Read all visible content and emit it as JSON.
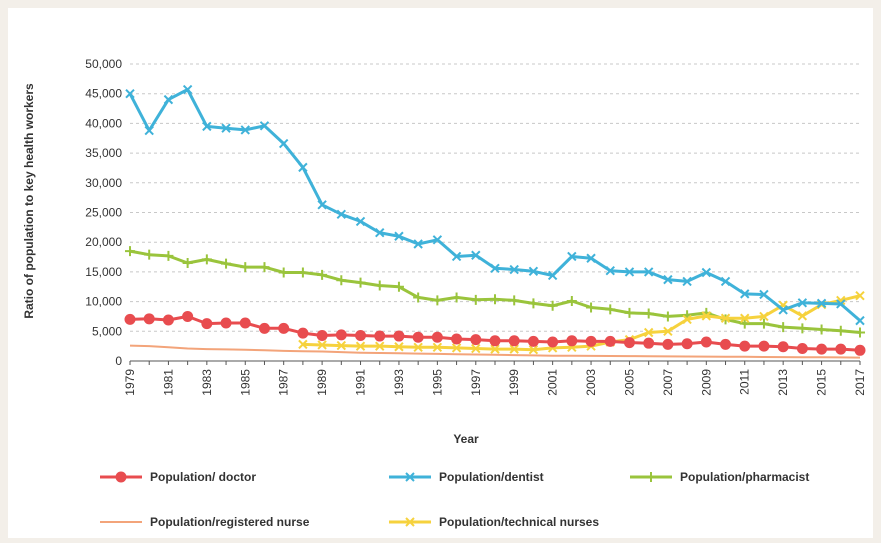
{
  "chart_data": {
    "type": "line",
    "xlabel": "Year",
    "ylabel": "Ratio of population to key health workers",
    "ylim": [
      0,
      50000
    ],
    "y_ticks": [
      "0",
      "5,000",
      "10,000",
      "15,000",
      "20,000",
      "25,000",
      "30,000",
      "35,000",
      "40,000",
      "45,000",
      "50,000"
    ],
    "x_ticks": [
      "1979",
      "1981",
      "1983",
      "1985",
      "1987",
      "1989",
      "1991",
      "1993",
      "1995",
      "1997",
      "1999",
      "2001",
      "2003",
      "2005",
      "2007",
      "2009",
      "2011",
      "2013",
      "2015",
      "2017"
    ],
    "grid": true,
    "legend_position": "bottom",
    "x": [
      1979,
      1980,
      1981,
      1982,
      1983,
      1984,
      1985,
      1986,
      1987,
      1988,
      1989,
      1990,
      1991,
      1992,
      1993,
      1994,
      1995,
      1996,
      1997,
      1998,
      1999,
      2000,
      2001,
      2002,
      2003,
      2004,
      2005,
      2006,
      2007,
      2008,
      2009,
      2010,
      2011,
      2012,
      2013,
      2014,
      2015,
      2016,
      2017
    ],
    "series": [
      {
        "name": "Population/ doctor",
        "color": "#e84c4f",
        "marker": "circle",
        "values": [
          7000,
          7100,
          6900,
          7500,
          6300,
          6400,
          6400,
          5500,
          5500,
          4700,
          4300,
          4400,
          4300,
          4200,
          4200,
          4000,
          4000,
          3700,
          3600,
          3400,
          3400,
          3300,
          3200,
          3400,
          3300,
          3300,
          3100,
          3000,
          2800,
          2900,
          3200,
          2800,
          2500,
          2500,
          2400,
          2100,
          2000,
          2000,
          1800
        ]
      },
      {
        "name": "Population/dentist",
        "color": "#3fb2d9",
        "marker": "x",
        "values": [
          45000,
          38800,
          44000,
          45700,
          39500,
          39200,
          38900,
          39600,
          36600,
          32600,
          26300,
          24700,
          23500,
          21600,
          21000,
          19700,
          20400,
          17600,
          17800,
          15600,
          15400,
          15100,
          14400,
          17600,
          17300,
          15200,
          15000,
          15000,
          13700,
          13400,
          14900,
          13400,
          11300,
          11200,
          8600,
          9800,
          9700,
          9600,
          6800
        ]
      },
      {
        "name": "Population/pharmacist",
        "color": "#9ac43c",
        "marker": "plus",
        "values": [
          18500,
          17900,
          17700,
          16500,
          17100,
          16400,
          15800,
          15800,
          14900,
          14900,
          14500,
          13600,
          13200,
          12700,
          12500,
          10700,
          10200,
          10700,
          10300,
          10400,
          10200,
          9700,
          9300,
          10100,
          9000,
          8700,
          8100,
          8000,
          7500,
          7700,
          8100,
          7000,
          6300,
          6300,
          5700,
          5500,
          5300,
          5100,
          4800
        ]
      },
      {
        "name": "Population/registered nurse",
        "color": "#f3a47a",
        "marker": "none",
        "values": [
          2600,
          2500,
          2300,
          2100,
          2000,
          1950,
          1900,
          1800,
          1700,
          1650,
          1600,
          1500,
          1400,
          1350,
          1300,
          1250,
          1200,
          1150,
          1100,
          1050,
          1000,
          950,
          900,
          880,
          860,
          840,
          820,
          800,
          780,
          760,
          740,
          720,
          700,
          680,
          660,
          640,
          620,
          600,
          580
        ]
      },
      {
        "name": "Population/technical nurses",
        "color": "#f6d23d",
        "marker": "x",
        "values": [
          null,
          null,
          null,
          null,
          null,
          null,
          null,
          null,
          null,
          2800,
          2700,
          2600,
          2500,
          2500,
          2400,
          2300,
          2300,
          2200,
          2100,
          2000,
          2000,
          1900,
          2200,
          2300,
          2500,
          3200,
          3600,
          4800,
          5000,
          7000,
          7600,
          7200,
          7200,
          7500,
          9400,
          7600,
          9500,
          10200,
          11000
        ]
      }
    ]
  }
}
